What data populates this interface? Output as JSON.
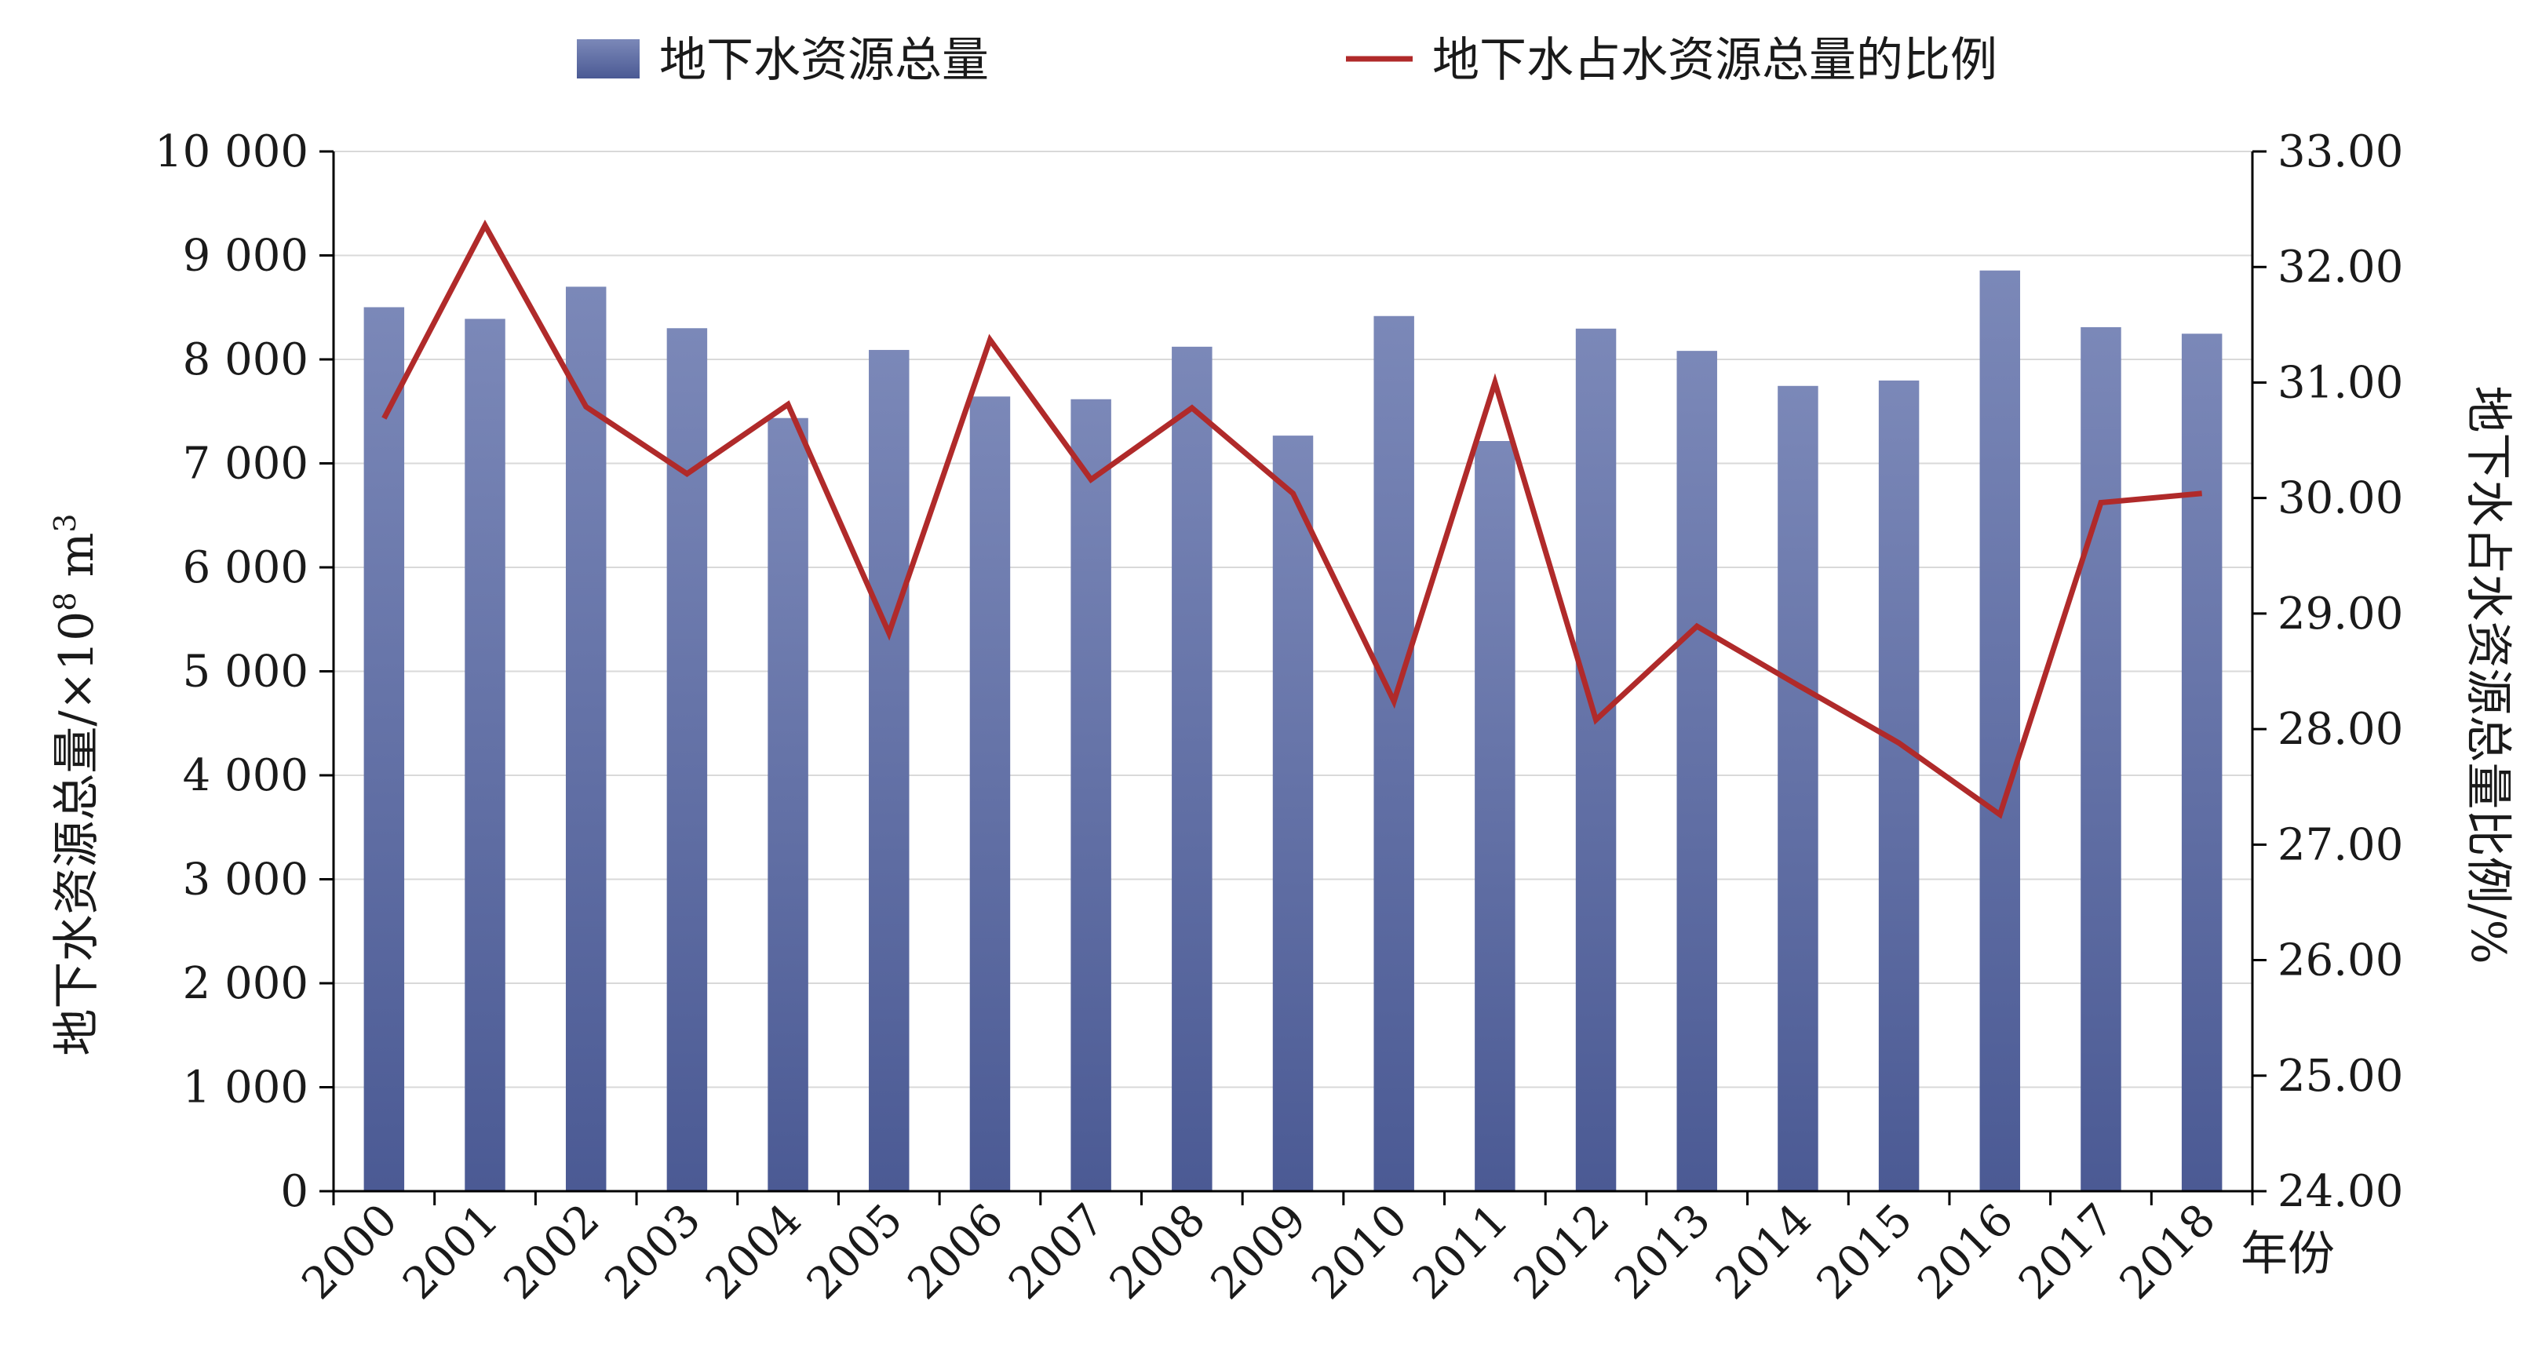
{
  "chart_data": {
    "type": "bar",
    "categories": [
      "2000",
      "2001",
      "2002",
      "2003",
      "2004",
      "2005",
      "2006",
      "2007",
      "2008",
      "2009",
      "2010",
      "2011",
      "2012",
      "2013",
      "2014",
      "2015",
      "2016",
      "2017",
      "2018"
    ],
    "series": [
      {
        "name": "地下水资源总量",
        "type": "bar",
        "axis": "left",
        "color": "#5a6aa2",
        "values": [
          8502,
          8390,
          8699,
          8300,
          7436,
          8091,
          7643,
          7617,
          8122,
          7267,
          8417,
          7215,
          8296,
          8082,
          7745,
          7797,
          8855,
          8310,
          8247
        ]
      },
      {
        "name": "地下水占水资源总量的比例",
        "type": "line",
        "axis": "right",
        "color": "#b02a2a",
        "values": [
          30.69,
          32.36,
          30.79,
          30.21,
          30.81,
          28.83,
          31.37,
          30.16,
          30.78,
          30.04,
          28.24,
          31.0,
          28.08,
          28.89,
          28.38,
          27.88,
          27.26,
          29.96,
          30.04
        ]
      }
    ],
    "left_axis": {
      "ylim": [
        0,
        10000
      ],
      "ticks": [
        0,
        1000,
        2000,
        3000,
        4000,
        5000,
        6000,
        7000,
        8000,
        9000,
        10000
      ],
      "tick_labels": [
        "0",
        "1 000",
        "2 000",
        "3 000",
        "4 000",
        "5 000",
        "6 000",
        "7 000",
        "8 000",
        "9 000",
        "10 000"
      ],
      "label_main": "地下水资源总量/×10",
      "label_exp": "8",
      "label_unit": " m",
      "label_unit_exp": "3"
    },
    "right_axis": {
      "ylim": [
        24,
        33
      ],
      "ticks": [
        24,
        25,
        26,
        27,
        28,
        29,
        30,
        31,
        32,
        33
      ],
      "tick_labels": [
        "24.00",
        "25.00",
        "26.00",
        "27.00",
        "28.00",
        "29.00",
        "30.00",
        "31.00",
        "32.00",
        "33.00"
      ],
      "label": "地下水占水资源总量比例/%"
    },
    "xlabel": "年份",
    "grid": true,
    "legend_position": "top"
  }
}
